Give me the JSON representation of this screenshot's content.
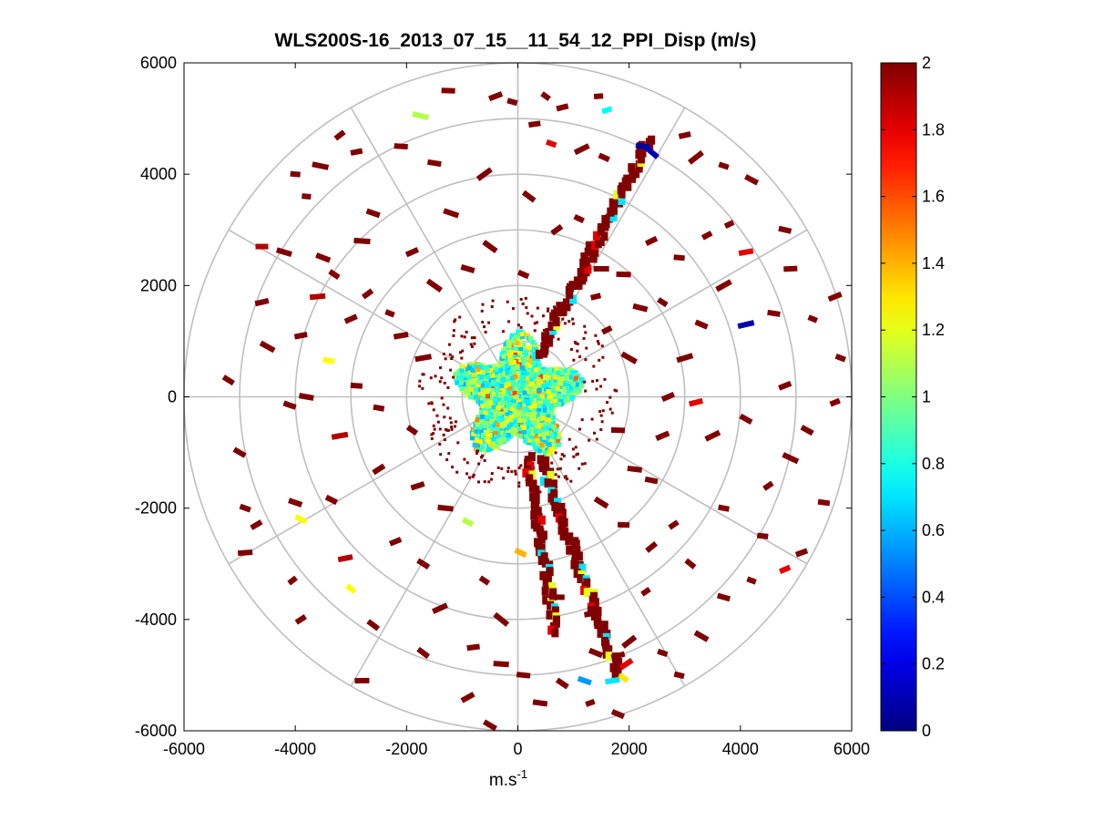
{
  "chart_data": {
    "type": "polar-scatter",
    "title": "WLS200S-16_2013_07_15__11_54_12_PPI_Disp (m/s)",
    "xlabel_base": "m.s",
    "xlabel_exp": "-1",
    "ylabel": "",
    "xlim": [
      -6000,
      6000
    ],
    "ylim": [
      -6000,
      6000
    ],
    "xticks": [
      -6000,
      -4000,
      -2000,
      0,
      2000,
      4000,
      6000
    ],
    "yticks": [
      -6000,
      -4000,
      -2000,
      0,
      2000,
      4000,
      6000
    ],
    "xtick_labels": [
      "-6000",
      "-4000",
      "-2000",
      "0",
      "2000",
      "4000",
      "6000"
    ],
    "ytick_labels": [
      "-6000",
      "-4000",
      "-2000",
      "0",
      "2000",
      "4000",
      "6000"
    ],
    "polar_rings": [
      1000,
      2000,
      3000,
      4000,
      5000,
      6000
    ],
    "polar_spokes_deg": [
      0,
      30,
      60,
      90,
      120,
      150,
      180,
      210,
      240,
      270,
      300,
      330
    ],
    "grid": true,
    "colorbar": {
      "colormap": "jet",
      "range": [
        0,
        2
      ],
      "ticks": [
        0,
        0.2,
        0.4,
        0.6,
        0.8,
        1,
        1.2,
        1.4,
        1.6,
        1.8,
        2
      ],
      "tick_labels": [
        "0",
        "0.2",
        "0.4",
        "0.6",
        "0.8",
        "1",
        "1.2",
        "1.4",
        "1.6",
        "1.8",
        "2"
      ],
      "location": "right"
    },
    "central_cluster": {
      "radius_m": 1200,
      "value_range": [
        0.6,
        1.3
      ],
      "shape": "irregular disk around origin"
    },
    "beams": [
      {
        "name": "beam-ne",
        "azimuth_deg": 27,
        "r_start": 800,
        "r_end": 5200,
        "value": 2
      },
      {
        "name": "beam-sse",
        "azimuth_deg": 160,
        "r_start": 1200,
        "r_end": 5300,
        "value": 2
      },
      {
        "name": "beam-ssw-near",
        "azimuth_deg": 171,
        "r_start": 1100,
        "r_end": 4300,
        "value": 2
      }
    ],
    "points": [
      {
        "x": -1750,
        "y": 5050,
        "v": 1.1
      },
      {
        "x": -1250,
        "y": 5500,
        "v": 2
      },
      {
        "x": -400,
        "y": 5400,
        "v": 2
      },
      {
        "x": -100,
        "y": 5300,
        "v": 2
      },
      {
        "x": 500,
        "y": 5400,
        "v": 2
      },
      {
        "x": 800,
        "y": 5200,
        "v": 2
      },
      {
        "x": 1450,
        "y": 5400,
        "v": 2
      },
      {
        "x": 1600,
        "y": 5150,
        "v": 0.75
      },
      {
        "x": 300,
        "y": 4900,
        "v": 2
      },
      {
        "x": 600,
        "y": 4550,
        "v": 1.8
      },
      {
        "x": 1150,
        "y": 4450,
        "v": 2
      },
      {
        "x": 1550,
        "y": 4300,
        "v": 2
      },
      {
        "x": 2250,
        "y": 4500,
        "v": 0.05
      },
      {
        "x": 2400,
        "y": 4400,
        "v": 0.1
      },
      {
        "x": 3000,
        "y": 4700,
        "v": 2
      },
      {
        "x": 3200,
        "y": 4300,
        "v": 2
      },
      {
        "x": 3700,
        "y": 4150,
        "v": 2
      },
      {
        "x": 4200,
        "y": 3900,
        "v": 2
      },
      {
        "x": -3200,
        "y": 4700,
        "v": 2
      },
      {
        "x": -2900,
        "y": 4400,
        "v": 2
      },
      {
        "x": -4000,
        "y": 4000,
        "v": 2
      },
      {
        "x": -3550,
        "y": 4150,
        "v": 2
      },
      {
        "x": -2100,
        "y": 4500,
        "v": 2
      },
      {
        "x": -1500,
        "y": 4200,
        "v": 2
      },
      {
        "x": -600,
        "y": 4000,
        "v": 2
      },
      {
        "x": -3800,
        "y": 3600,
        "v": 2
      },
      {
        "x": -4600,
        "y": 2700,
        "v": 1.9
      },
      {
        "x": -4200,
        "y": 2600,
        "v": 2
      },
      {
        "x": -3500,
        "y": 2500,
        "v": 2
      },
      {
        "x": -3600,
        "y": 1800,
        "v": 1.9
      },
      {
        "x": -3300,
        "y": 2200,
        "v": 2
      },
      {
        "x": -2800,
        "y": 2800,
        "v": 2
      },
      {
        "x": -2700,
        "y": 1850,
        "v": 2
      },
      {
        "x": -2300,
        "y": 1500,
        "v": 2
      },
      {
        "x": -3000,
        "y": 1400,
        "v": 2
      },
      {
        "x": -3400,
        "y": 650,
        "v": 1.25
      },
      {
        "x": -5200,
        "y": 300,
        "v": 2
      },
      {
        "x": -3800,
        "y": 0,
        "v": 2
      },
      {
        "x": -4100,
        "y": -150,
        "v": 2
      },
      {
        "x": -3200,
        "y": -700,
        "v": 1.9
      },
      {
        "x": -4000,
        "y": -1900,
        "v": 2
      },
      {
        "x": -3900,
        "y": -2200,
        "v": 1.25
      },
      {
        "x": -3350,
        "y": -1850,
        "v": 2
      },
      {
        "x": -4700,
        "y": -2300,
        "v": 2
      },
      {
        "x": -4900,
        "y": -2800,
        "v": 2
      },
      {
        "x": -4050,
        "y": -3300,
        "v": 2
      },
      {
        "x": -3100,
        "y": -2900,
        "v": 1.9
      },
      {
        "x": -3000,
        "y": -3450,
        "v": 1.25
      },
      {
        "x": -3900,
        "y": -4000,
        "v": 2
      },
      {
        "x": -2800,
        "y": -5100,
        "v": 2
      },
      {
        "x": -1700,
        "y": -4600,
        "v": 2
      },
      {
        "x": -900,
        "y": -2250,
        "v": 1.1
      },
      {
        "x": -1400,
        "y": -3800,
        "v": 2
      },
      {
        "x": -800,
        "y": -4500,
        "v": 2
      },
      {
        "x": -900,
        "y": -5400,
        "v": 2
      },
      {
        "x": -500,
        "y": -5900,
        "v": 2
      },
      {
        "x": 50,
        "y": -2800,
        "v": 1.4
      },
      {
        "x": 800,
        "y": -5150,
        "v": 2
      },
      {
        "x": 1200,
        "y": -5100,
        "v": 0.55
      },
      {
        "x": 1700,
        "y": -5100,
        "v": 0.7
      },
      {
        "x": 1900,
        "y": -5050,
        "v": 1.3
      },
      {
        "x": 1950,
        "y": -4800,
        "v": 1.8
      },
      {
        "x": 1800,
        "y": -4650,
        "v": 2
      },
      {
        "x": 2000,
        "y": -4400,
        "v": 2
      },
      {
        "x": 2600,
        "y": -4600,
        "v": 2
      },
      {
        "x": 2900,
        "y": -5000,
        "v": 2
      },
      {
        "x": 3300,
        "y": -4300,
        "v": 2
      },
      {
        "x": 3700,
        "y": -3600,
        "v": 2
      },
      {
        "x": 4200,
        "y": -3300,
        "v": 2
      },
      {
        "x": 4800,
        "y": -3100,
        "v": 1.8
      },
      {
        "x": 5100,
        "y": -2800,
        "v": 2
      },
      {
        "x": 5500,
        "y": -1900,
        "v": 2
      },
      {
        "x": 4500,
        "y": -1600,
        "v": 2
      },
      {
        "x": 3700,
        "y": -2000,
        "v": 2
      },
      {
        "x": 2800,
        "y": -2300,
        "v": 2
      },
      {
        "x": 2400,
        "y": -1500,
        "v": 2
      },
      {
        "x": 3500,
        "y": -700,
        "v": 2
      },
      {
        "x": 2700,
        "y": 0,
        "v": 2
      },
      {
        "x": 3200,
        "y": -100,
        "v": 1.8
      },
      {
        "x": 4100,
        "y": -400,
        "v": 2
      },
      {
        "x": 4800,
        "y": 200,
        "v": 2
      },
      {
        "x": 5700,
        "y": -100,
        "v": 2
      },
      {
        "x": 4600,
        "y": 1500,
        "v": 2
      },
      {
        "x": 5300,
        "y": 1400,
        "v": 2
      },
      {
        "x": 5800,
        "y": 700,
        "v": 2
      },
      {
        "x": 4100,
        "y": 1300,
        "v": 0.1
      },
      {
        "x": 3700,
        "y": 2000,
        "v": 2
      },
      {
        "x": 4100,
        "y": 2600,
        "v": 1.8
      },
      {
        "x": 3400,
        "y": 2900,
        "v": 2
      },
      {
        "x": 2900,
        "y": 2500,
        "v": 2
      },
      {
        "x": 2400,
        "y": 2800,
        "v": 2
      },
      {
        "x": 2600,
        "y": 1700,
        "v": 2
      },
      {
        "x": 3300,
        "y": 1300,
        "v": 2
      },
      {
        "x": 2200,
        "y": 1600,
        "v": 2
      },
      {
        "x": 1900,
        "y": 2200,
        "v": 2
      },
      {
        "x": 1500,
        "y": 2300,
        "v": 2
      },
      {
        "x": 1100,
        "y": 3200,
        "v": 2
      },
      {
        "x": 700,
        "y": 3000,
        "v": 2
      },
      {
        "x": 200,
        "y": 3600,
        "v": 2
      },
      {
        "x": -1200,
        "y": 3300,
        "v": 2
      },
      {
        "x": -1900,
        "y": 2600,
        "v": 2
      },
      {
        "x": -2600,
        "y": 3300,
        "v": 2
      },
      {
        "x": -1500,
        "y": 2000,
        "v": 2
      },
      {
        "x": -900,
        "y": 2300,
        "v": 2
      },
      {
        "x": 100,
        "y": 2200,
        "v": 2
      },
      {
        "x": -500,
        "y": 2700,
        "v": 2
      },
      {
        "x": 1400,
        "y": 1800,
        "v": 2
      },
      {
        "x": -1800,
        "y": -1600,
        "v": 2
      },
      {
        "x": -2500,
        "y": -1300,
        "v": 2
      },
      {
        "x": -1300,
        "y": -2000,
        "v": 2
      },
      {
        "x": -2200,
        "y": -2600,
        "v": 2
      },
      {
        "x": -1700,
        "y": -3000,
        "v": 2
      },
      {
        "x": -2600,
        "y": -4100,
        "v": 2
      },
      {
        "x": -600,
        "y": -3300,
        "v": 2
      },
      {
        "x": 1300,
        "y": -3900,
        "v": 2
      },
      {
        "x": 700,
        "y": -3600,
        "v": 2
      },
      {
        "x": 2300,
        "y": -3500,
        "v": 2
      },
      {
        "x": 3100,
        "y": -3000,
        "v": 2
      },
      {
        "x": 2400,
        "y": -2700,
        "v": 2
      },
      {
        "x": 1900,
        "y": -2300,
        "v": 2
      },
      {
        "x": 4400,
        "y": -2500,
        "v": 2
      },
      {
        "x": -300,
        "y": -4000,
        "v": 2
      },
      {
        "x": -300,
        "y": -4800,
        "v": 2
      },
      {
        "x": 100,
        "y": -5000,
        "v": 2
      },
      {
        "x": 400,
        "y": -5500,
        "v": 2
      },
      {
        "x": 1300,
        "y": -5500,
        "v": 2
      },
      {
        "x": 1800,
        "y": -5700,
        "v": 2
      },
      {
        "x": 1400,
        "y": -4600,
        "v": 2
      },
      {
        "x": 4900,
        "y": -1100,
        "v": 2
      },
      {
        "x": 5200,
        "y": -600,
        "v": 2
      },
      {
        "x": 1500,
        "y": -1900,
        "v": 2
      },
      {
        "x": 2100,
        "y": -1300,
        "v": 2
      },
      {
        "x": 2600,
        "y": -700,
        "v": 2
      },
      {
        "x": 1800,
        "y": -600,
        "v": 2
      },
      {
        "x": 1600,
        "y": 1200,
        "v": 2
      },
      {
        "x": 2000,
        "y": 700,
        "v": 2
      },
      {
        "x": 3000,
        "y": 700,
        "v": 2
      },
      {
        "x": 5700,
        "y": 1800,
        "v": 2
      },
      {
        "x": 4900,
        "y": 2300,
        "v": 2
      },
      {
        "x": 4800,
        "y": 3000,
        "v": 2
      },
      {
        "x": 3800,
        "y": 3100,
        "v": 2
      },
      {
        "x": -2900,
        "y": 200,
        "v": 2
      },
      {
        "x": -2500,
        "y": -200,
        "v": 2
      },
      {
        "x": -1900,
        "y": -600,
        "v": 2
      },
      {
        "x": -1700,
        "y": 700,
        "v": 2
      },
      {
        "x": -2100,
        "y": 1100,
        "v": 2
      },
      {
        "x": -4900,
        "y": -2000,
        "v": 2
      },
      {
        "x": -5000,
        "y": -1000,
        "v": 2
      },
      {
        "x": -4500,
        "y": 900,
        "v": 2
      },
      {
        "x": -4600,
        "y": 1700,
        "v": 2
      },
      {
        "x": -3900,
        "y": 1100,
        "v": 2
      }
    ]
  }
}
